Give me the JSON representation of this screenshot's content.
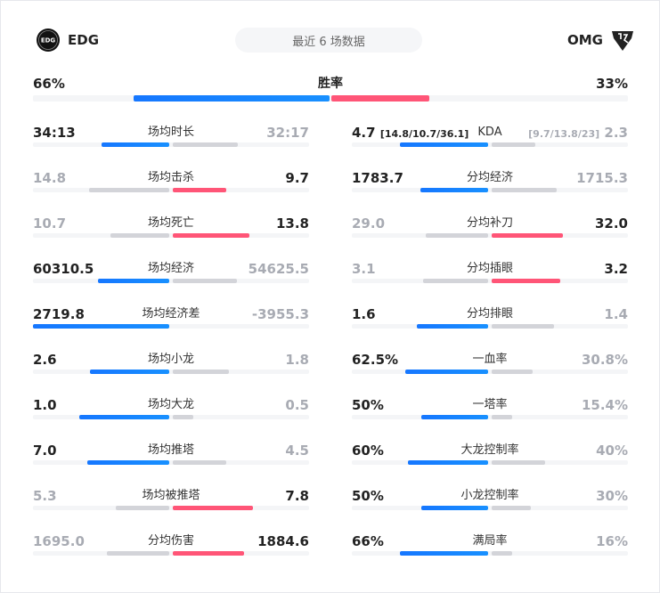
{
  "header": {
    "left_team": "EDG",
    "right_team": "OMG",
    "period": "最近 6 场数据"
  },
  "colors": {
    "left": "#1677ff",
    "right": "#ff5577",
    "loser": "#d3d4d9"
  },
  "winrate": {
    "label": "胜率",
    "left": "66%",
    "right": "33%",
    "left_fill": 0.66,
    "right_fill": 0.33
  },
  "left_stats": [
    {
      "label": "场均时长",
      "left": "34:13",
      "right": "32:17",
      "winner": "left",
      "left_fill": 0.5,
      "right_fill": 0.48
    },
    {
      "label": "场均击杀",
      "left": "14.8",
      "right": "9.7",
      "winner": "right",
      "left_fill": 0.59,
      "right_fill": 0.39
    },
    {
      "label": "场均死亡",
      "left": "10.7",
      "right": "13.8",
      "winner": "right",
      "left_fill": 0.43,
      "right_fill": 0.56
    },
    {
      "label": "场均经济",
      "left": "60310.5",
      "right": "54625.5",
      "winner": "left",
      "left_fill": 0.52,
      "right_fill": 0.47
    },
    {
      "label": "场均经济差",
      "left": "2719.8",
      "right": "-3955.3",
      "winner": "left",
      "left_fill": 1.0,
      "right_fill": 0
    },
    {
      "label": "场均小龙",
      "left": "2.6",
      "right": "1.8",
      "winner": "left",
      "left_fill": 0.58,
      "right_fill": 0.41
    },
    {
      "label": "场均大龙",
      "left": "1.0",
      "right": "0.5",
      "winner": "left",
      "left_fill": 0.66,
      "right_fill": 0.15
    },
    {
      "label": "场均推塔",
      "left": "7.0",
      "right": "4.5",
      "winner": "left",
      "left_fill": 0.6,
      "right_fill": 0.39
    },
    {
      "label": "场均被推塔",
      "left": "5.3",
      "right": "7.8",
      "winner": "right",
      "left_fill": 0.39,
      "right_fill": 0.59
    },
    {
      "label": "分均伤害",
      "left": "1695.0",
      "right": "1884.6",
      "winner": "right",
      "left_fill": 0.46,
      "right_fill": 0.52
    }
  ],
  "right_stats": [
    {
      "label": "KDA",
      "left": "4.7",
      "left_extra": "[14.8/10.7/36.1]",
      "right": "2.3",
      "right_extra": "[9.7/13.8/23]",
      "winner": "left",
      "left_fill": 0.65,
      "right_fill": 0.32
    },
    {
      "label": "分均经济",
      "left": "1783.7",
      "right": "1715.3",
      "winner": "left",
      "left_fill": 0.5,
      "right_fill": 0.48
    },
    {
      "label": "分均补刀",
      "left": "29.0",
      "right": "32.0",
      "winner": "right",
      "left_fill": 0.46,
      "right_fill": 0.52
    },
    {
      "label": "分均插眼",
      "left": "3.1",
      "right": "3.2",
      "winner": "right",
      "left_fill": 0.48,
      "right_fill": 0.5
    },
    {
      "label": "分均排眼",
      "left": "1.6",
      "right": "1.4",
      "winner": "left",
      "left_fill": 0.52,
      "right_fill": 0.46
    },
    {
      "label": "一血率",
      "left": "62.5%",
      "right": "30.8%",
      "winner": "left",
      "left_fill": 0.61,
      "right_fill": 0.3
    },
    {
      "label": "一塔率",
      "left": "50%",
      "right": "15.4%",
      "winner": "left",
      "left_fill": 0.49,
      "right_fill": 0.15
    },
    {
      "label": "大龙控制率",
      "left": "60%",
      "right": "40%",
      "winner": "left",
      "left_fill": 0.59,
      "right_fill": 0.39
    },
    {
      "label": "小龙控制率",
      "left": "50%",
      "right": "30%",
      "winner": "left",
      "left_fill": 0.49,
      "right_fill": 0.29
    },
    {
      "label": "满局率",
      "left": "66%",
      "right": "16%",
      "winner": "left",
      "left_fill": 0.65,
      "right_fill": 0.15
    }
  ]
}
